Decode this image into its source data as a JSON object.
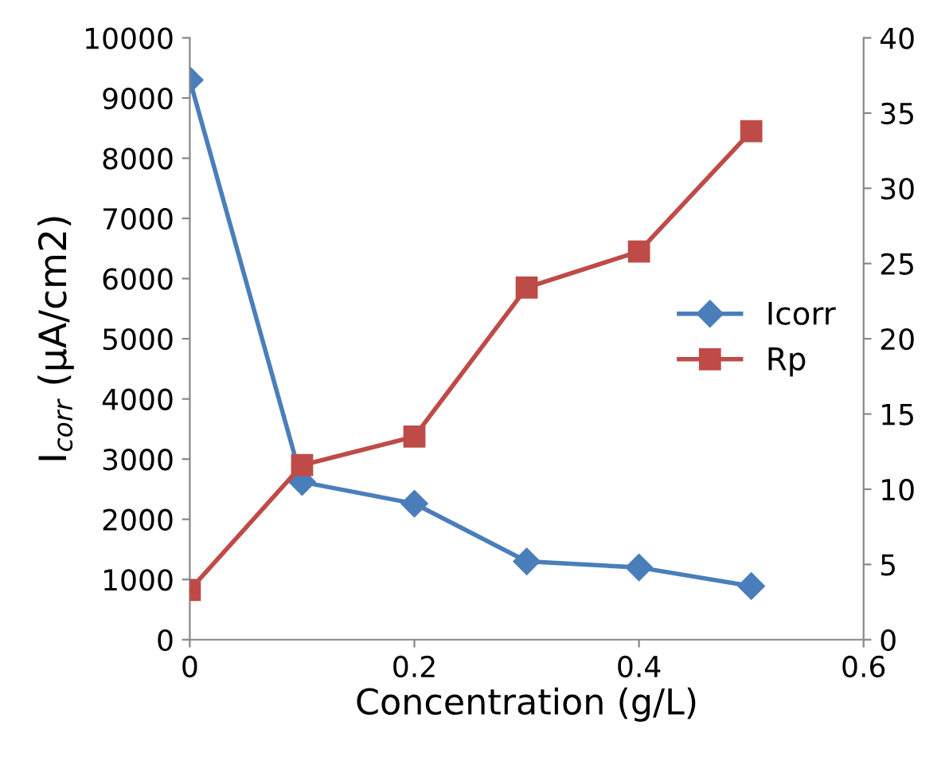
{
  "chart_data": {
    "type": "line",
    "xlabel": "Concentration (g/L)",
    "ylabel": "I$_{corr}$ (µA/cm2)",
    "x": [
      0,
      0.1,
      0.2,
      0.3,
      0.4,
      0.5
    ],
    "series": [
      {
        "name": "Icorr",
        "color": "#4a7ebb",
        "marker": "diamond",
        "values": [
          9300,
          2620,
          2260,
          1300,
          1200,
          890
        ]
      },
      {
        "name": "Rp",
        "color": "#be4b48",
        "marker": "square",
        "axis": "y2",
        "values": [
          3.3,
          11.6,
          13.5,
          23.4,
          25.8,
          33.8
        ]
      }
    ],
    "xlim": [
      0,
      0.6
    ],
    "xticks": [
      0,
      0.2,
      0.4,
      0.6
    ],
    "ylim": [
      0,
      10000
    ],
    "yticks": [
      0,
      1000,
      2000,
      3000,
      4000,
      5000,
      6000,
      7000,
      8000,
      9000,
      10000
    ],
    "y2lim": [
      0,
      40
    ],
    "y2ticks": [
      0,
      5,
      10,
      15,
      20,
      25,
      30,
      35,
      40
    ],
    "legend": "right",
    "grid": false,
    "line_style": "solid"
  }
}
